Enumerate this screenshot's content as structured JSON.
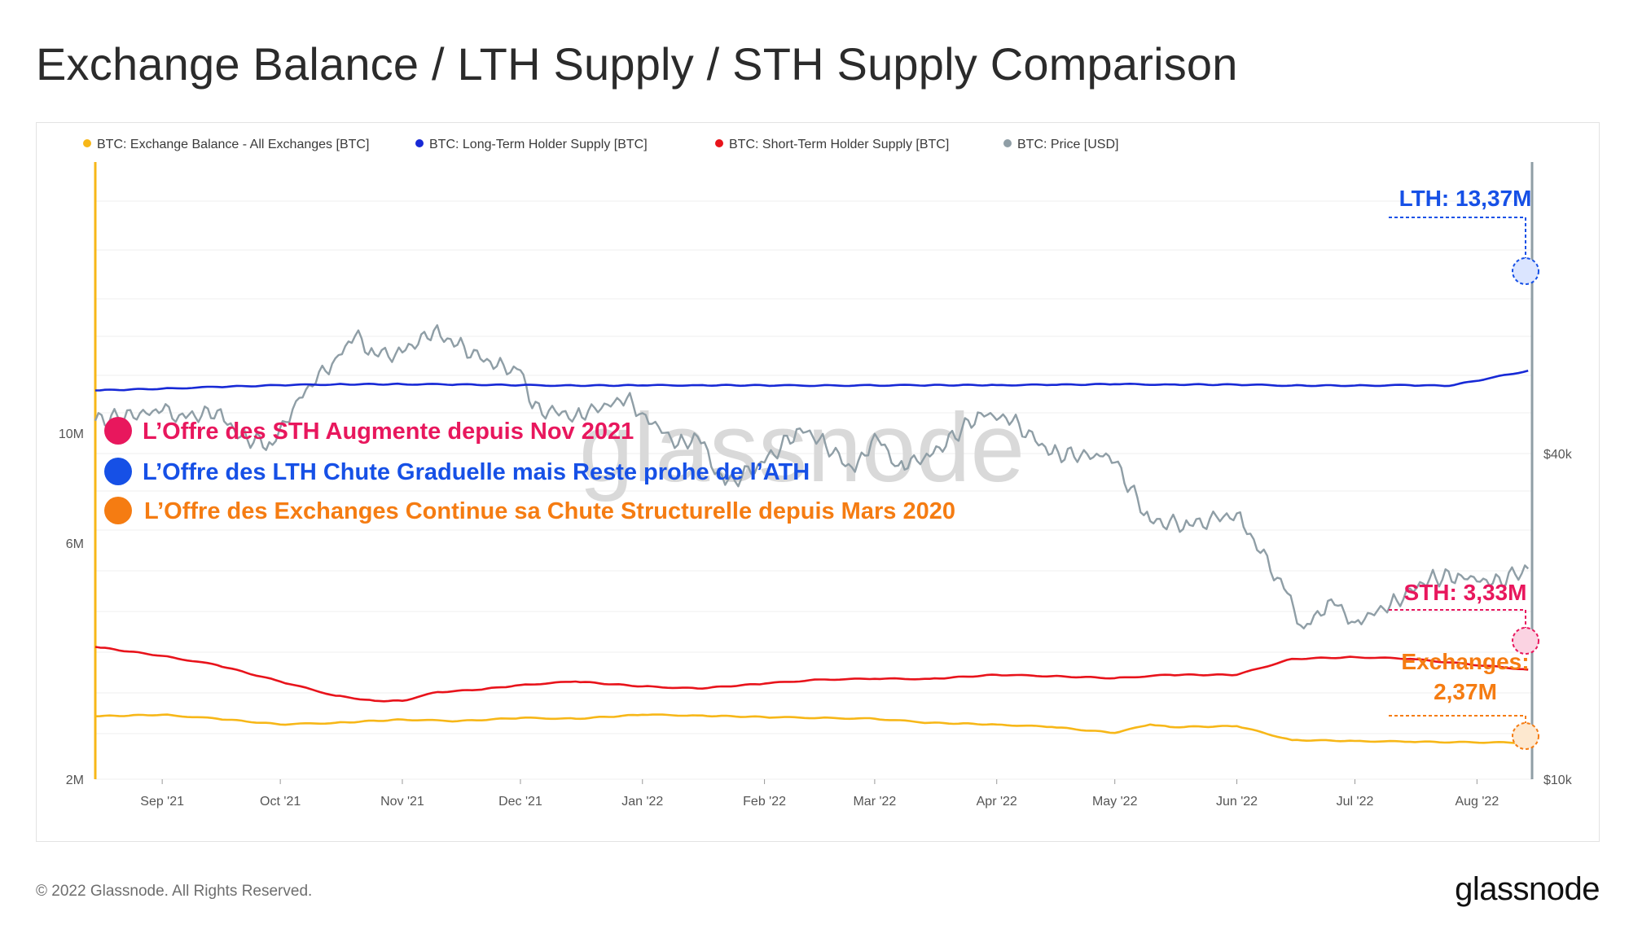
{
  "title": "Exchange Balance / LTH Supply / STH Supply Comparison",
  "footer": {
    "copyright": "© 2022 Glassnode. All Rights Reserved.",
    "logo": "glassnode"
  },
  "watermark": "glassnode",
  "colors": {
    "exchange": "#f7b718",
    "lth": "#1729d6",
    "sth": "#e8131b",
    "price": "#8f9ea6",
    "sth_annotation": "#e8175d",
    "lth_annotation": "#1650e6",
    "exchange_annotation": "#f57c12"
  },
  "annotations": [
    {
      "label": "L’Offre des STH Augmente depuis Nov 2021",
      "color": "#e8175d"
    },
    {
      "label": "L’Offre des LTH Chute Graduelle mais Reste prohe de l’ATH",
      "color": "#1650e6"
    },
    {
      "label": "L’Offre des Exchanges Continue sa Chute Structurelle depuis Mars 2020",
      "color": "#f57c12"
    }
  ],
  "callouts": {
    "lth": "LTH: 13,37M",
    "sth": "STH: 3,33M",
    "exchange_line1": "Exchanges:",
    "exchange_line2": "2,37M"
  },
  "chart_data": {
    "type": "line",
    "legend_position": "top-left",
    "grid": true,
    "legend": [
      {
        "name": "BTC: Exchange Balance - All Exchanges [BTC]",
        "color": "#f7b718"
      },
      {
        "name": "BTC: Long-Term Holder Supply [BTC]",
        "color": "#1729d6"
      },
      {
        "name": "BTC: Short-Term Holder Supply [BTC]",
        "color": "#e8131b"
      },
      {
        "name": "BTC: Price [USD]",
        "color": "#8f9ea6"
      }
    ],
    "x_range": [
      "2021-08-15",
      "2022-08-15"
    ],
    "x_ticks": [
      {
        "date": "2021-09-01",
        "label": "Sep '21"
      },
      {
        "date": "2021-10-01",
        "label": "Oct '21"
      },
      {
        "date": "2021-11-01",
        "label": "Nov '21"
      },
      {
        "date": "2021-12-01",
        "label": "Dec '21"
      },
      {
        "date": "2022-01-01",
        "label": "Jan '22"
      },
      {
        "date": "2022-02-01",
        "label": "Feb '22"
      },
      {
        "date": "2022-03-01",
        "label": "Mar '22"
      },
      {
        "date": "2022-04-01",
        "label": "Apr '22"
      },
      {
        "date": "2022-05-01",
        "label": "May '22"
      },
      {
        "date": "2022-06-01",
        "label": "Jun '22"
      },
      {
        "date": "2022-07-01",
        "label": "Jul '22"
      },
      {
        "date": "2022-08-01",
        "label": "Aug '22"
      }
    ],
    "y_left": {
      "scale": "log",
      "ticks": [
        {
          "value": 2000000,
          "label": "2M"
        },
        {
          "value": 6000000,
          "label": "6M"
        },
        {
          "value": 10000000,
          "label": "10M"
        }
      ]
    },
    "y_right": {
      "scale": "log",
      "ticks": [
        {
          "value": 10000,
          "label": "$10k"
        },
        {
          "value": 40000,
          "label": "$40k"
        }
      ]
    },
    "series": [
      {
        "name": "BTC: Long-Term Holder Supply [BTC]",
        "axis": "left",
        "points": [
          [
            "2021-08-15",
            12200000
          ],
          [
            "2021-09-01",
            12300000
          ],
          [
            "2021-09-15",
            12400000
          ],
          [
            "2021-10-01",
            12500000
          ],
          [
            "2021-10-15",
            12550000
          ],
          [
            "2021-11-01",
            12560000
          ],
          [
            "2021-11-15",
            12540000
          ],
          [
            "2021-12-01",
            12500000
          ],
          [
            "2021-12-15",
            12480000
          ],
          [
            "2022-01-01",
            12490000
          ],
          [
            "2022-01-15",
            12500000
          ],
          [
            "2022-02-01",
            12490000
          ],
          [
            "2022-02-15",
            12480000
          ],
          [
            "2022-03-01",
            12490000
          ],
          [
            "2022-03-15",
            12500000
          ],
          [
            "2022-04-01",
            12510000
          ],
          [
            "2022-04-15",
            12520000
          ],
          [
            "2022-05-01",
            12560000
          ],
          [
            "2022-05-15",
            12540000
          ],
          [
            "2022-06-01",
            12530000
          ],
          [
            "2022-06-15",
            12480000
          ],
          [
            "2022-07-01",
            12480000
          ],
          [
            "2022-07-15",
            12500000
          ],
          [
            "2022-07-25",
            12460000
          ],
          [
            "2022-08-14",
            13370000
          ]
        ]
      },
      {
        "name": "BTC: Short-Term Holder Supply [BTC]",
        "axis": "left",
        "points": [
          [
            "2021-08-15",
            3700000
          ],
          [
            "2021-09-01",
            3550000
          ],
          [
            "2021-09-15",
            3400000
          ],
          [
            "2021-10-01",
            3150000
          ],
          [
            "2021-10-15",
            2950000
          ],
          [
            "2021-10-25",
            2880000
          ],
          [
            "2021-11-01",
            2880000
          ],
          [
            "2021-11-10",
            3000000
          ],
          [
            "2021-11-20",
            3030000
          ],
          [
            "2021-12-01",
            3100000
          ],
          [
            "2021-12-15",
            3150000
          ],
          [
            "2022-01-01",
            3080000
          ],
          [
            "2022-01-15",
            3050000
          ],
          [
            "2022-02-01",
            3120000
          ],
          [
            "2022-02-15",
            3180000
          ],
          [
            "2022-03-01",
            3190000
          ],
          [
            "2022-03-15",
            3190000
          ],
          [
            "2022-04-01",
            3250000
          ],
          [
            "2022-04-15",
            3230000
          ],
          [
            "2022-05-01",
            3200000
          ],
          [
            "2022-05-15",
            3250000
          ],
          [
            "2022-06-01",
            3250000
          ],
          [
            "2022-06-15",
            3500000
          ],
          [
            "2022-07-01",
            3530000
          ],
          [
            "2022-07-15",
            3500000
          ],
          [
            "2022-08-14",
            3330000
          ]
        ]
      },
      {
        "name": "BTC: Exchange Balance - All Exchanges [BTC]",
        "axis": "left",
        "points": [
          [
            "2021-08-15",
            2680000
          ],
          [
            "2021-09-01",
            2700000
          ],
          [
            "2021-09-15",
            2650000
          ],
          [
            "2021-10-01",
            2580000
          ],
          [
            "2021-10-15",
            2600000
          ],
          [
            "2021-11-01",
            2640000
          ],
          [
            "2021-11-15",
            2620000
          ],
          [
            "2021-12-01",
            2660000
          ],
          [
            "2021-12-15",
            2650000
          ],
          [
            "2022-01-01",
            2700000
          ],
          [
            "2022-01-15",
            2690000
          ],
          [
            "2022-02-01",
            2670000
          ],
          [
            "2022-02-15",
            2660000
          ],
          [
            "2022-03-01",
            2650000
          ],
          [
            "2022-03-15",
            2600000
          ],
          [
            "2022-04-01",
            2580000
          ],
          [
            "2022-04-15",
            2550000
          ],
          [
            "2022-05-01",
            2480000
          ],
          [
            "2022-05-10",
            2580000
          ],
          [
            "2022-05-15",
            2550000
          ],
          [
            "2022-06-01",
            2560000
          ],
          [
            "2022-06-15",
            2400000
          ],
          [
            "2022-07-01",
            2390000
          ],
          [
            "2022-07-15",
            2380000
          ],
          [
            "2022-08-14",
            2370000
          ]
        ]
      },
      {
        "name": "BTC: Price [USD]",
        "axis": "right",
        "points": [
          [
            "2021-08-15",
            46000
          ],
          [
            "2021-09-01",
            48000
          ],
          [
            "2021-09-07",
            46500
          ],
          [
            "2021-09-15",
            48000
          ],
          [
            "2021-09-21",
            43000
          ],
          [
            "2021-09-29",
            41500
          ],
          [
            "2021-10-05",
            50000
          ],
          [
            "2021-10-15",
            60000
          ],
          [
            "2021-10-20",
            66000
          ],
          [
            "2021-10-25",
            61000
          ],
          [
            "2021-11-01",
            61500
          ],
          [
            "2021-11-09",
            67500
          ],
          [
            "2021-11-15",
            63500
          ],
          [
            "2021-11-25",
            58000
          ],
          [
            "2021-12-01",
            57000
          ],
          [
            "2021-12-04",
            48500
          ],
          [
            "2021-12-15",
            47000
          ],
          [
            "2021-12-28",
            50500
          ],
          [
            "2022-01-01",
            47500
          ],
          [
            "2022-01-10",
            41500
          ],
          [
            "2022-01-15",
            43000
          ],
          [
            "2022-01-22",
            35000
          ],
          [
            "2022-02-01",
            38500
          ],
          [
            "2022-02-10",
            44500
          ],
          [
            "2022-02-15",
            42500
          ],
          [
            "2022-02-24",
            37000
          ],
          [
            "2022-03-01",
            43500
          ],
          [
            "2022-03-07",
            38000
          ],
          [
            "2022-03-15",
            39500
          ],
          [
            "2022-03-28",
            47500
          ],
          [
            "2022-04-05",
            46000
          ],
          [
            "2022-04-15",
            40000
          ],
          [
            "2022-04-28",
            39500
          ],
          [
            "2022-05-01",
            38500
          ],
          [
            "2022-05-10",
            30000
          ],
          [
            "2022-05-20",
            29500
          ],
          [
            "2022-06-01",
            31000
          ],
          [
            "2022-06-13",
            22500
          ],
          [
            "2022-06-18",
            19000
          ],
          [
            "2022-06-25",
            21500
          ],
          [
            "2022-07-01",
            19500
          ],
          [
            "2022-07-10",
            21000
          ],
          [
            "2022-07-20",
            23500
          ],
          [
            "2022-07-28",
            23800
          ],
          [
            "2022-08-05",
            23000
          ],
          [
            "2022-08-14",
            24500
          ]
        ]
      }
    ]
  }
}
